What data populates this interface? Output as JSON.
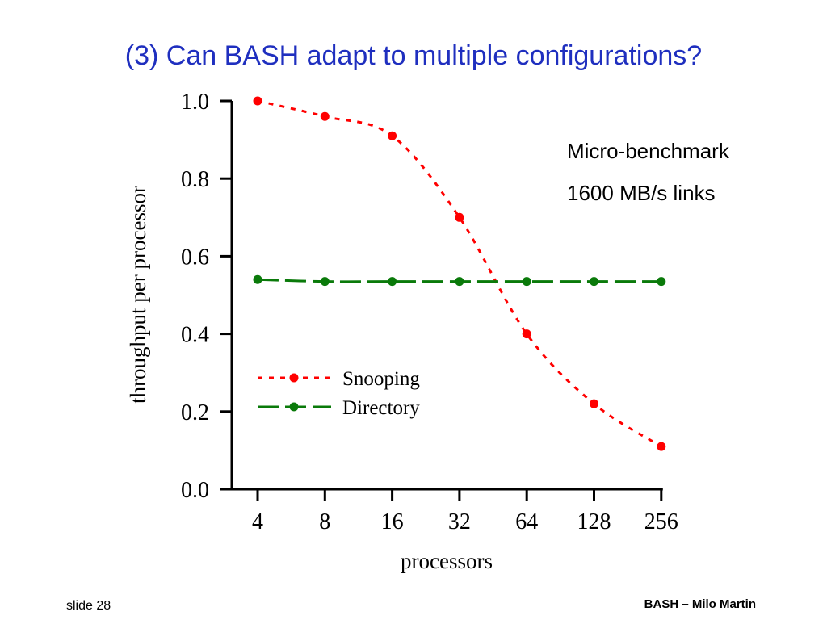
{
  "slide": {
    "title": "(3) Can BASH adapt to multiple configurations?",
    "notes": [
      "Micro-benchmark",
      "1600 MB/s links"
    ],
    "footer_left": "slide 28",
    "footer_right": "BASH – Milo Martin"
  },
  "chart_data": {
    "type": "line",
    "title": "",
    "xlabel": "processors",
    "ylabel": "throughput per processor",
    "categories": [
      "4",
      "8",
      "16",
      "32",
      "64",
      "128",
      "256"
    ],
    "yticks": [
      "0.0",
      "0.2",
      "0.4",
      "0.6",
      "0.8",
      "1.0"
    ],
    "ylim": [
      0,
      1.0
    ],
    "grid": false,
    "legend": "lower-left",
    "series": [
      {
        "name": "Snooping",
        "color": "#ff0000",
        "style": "dotted",
        "values": [
          1.0,
          0.96,
          0.91,
          0.7,
          0.4,
          0.22,
          0.11
        ]
      },
      {
        "name": "Directory",
        "color": "#0a7a0a",
        "style": "dashed",
        "values": [
          0.54,
          0.535,
          0.535,
          0.535,
          0.535,
          0.535,
          0.535
        ]
      }
    ]
  }
}
